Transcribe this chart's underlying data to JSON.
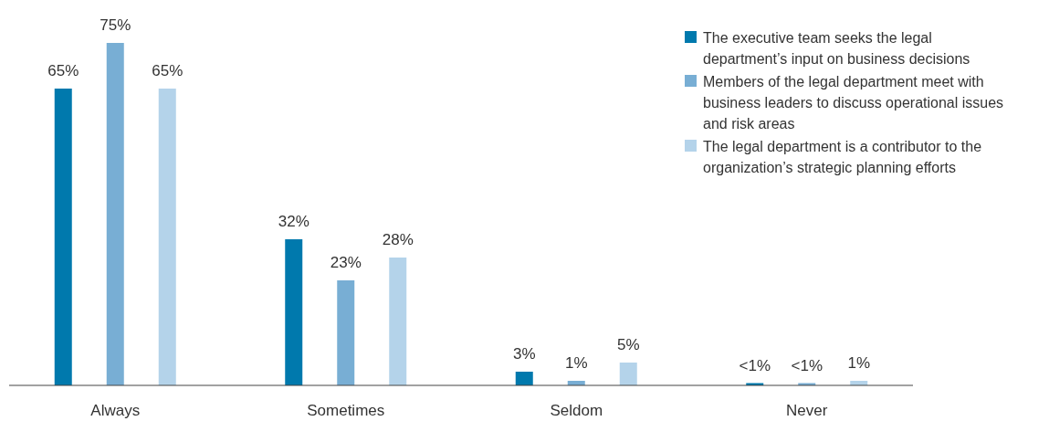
{
  "chart_data": {
    "type": "bar",
    "categories": [
      "Always",
      "Sometimes",
      "Seldom",
      "Never"
    ],
    "series": [
      {
        "name": "The executive team seeks the legal department’s input on business decisions",
        "color": "#0079ad",
        "values": [
          65,
          32,
          3,
          0.5
        ],
        "value_labels": [
          "65%",
          "32%",
          "3%",
          "<1%"
        ]
      },
      {
        "name": "Members of the legal department meet with business leaders to discuss operational issues and risk areas",
        "color": "#78aed4",
        "values": [
          75,
          23,
          1,
          0.5
        ],
        "value_labels": [
          "75%",
          "23%",
          "1%",
          "<1%"
        ]
      },
      {
        "name": "The legal department is a contributor to the organization’s strategic planning efforts",
        "color": "#b4d3ea",
        "values": [
          65,
          28,
          5,
          1
        ],
        "value_labels": [
          "65%",
          "28%",
          "5%",
          "1%"
        ]
      }
    ],
    "legend": "top right"
  }
}
